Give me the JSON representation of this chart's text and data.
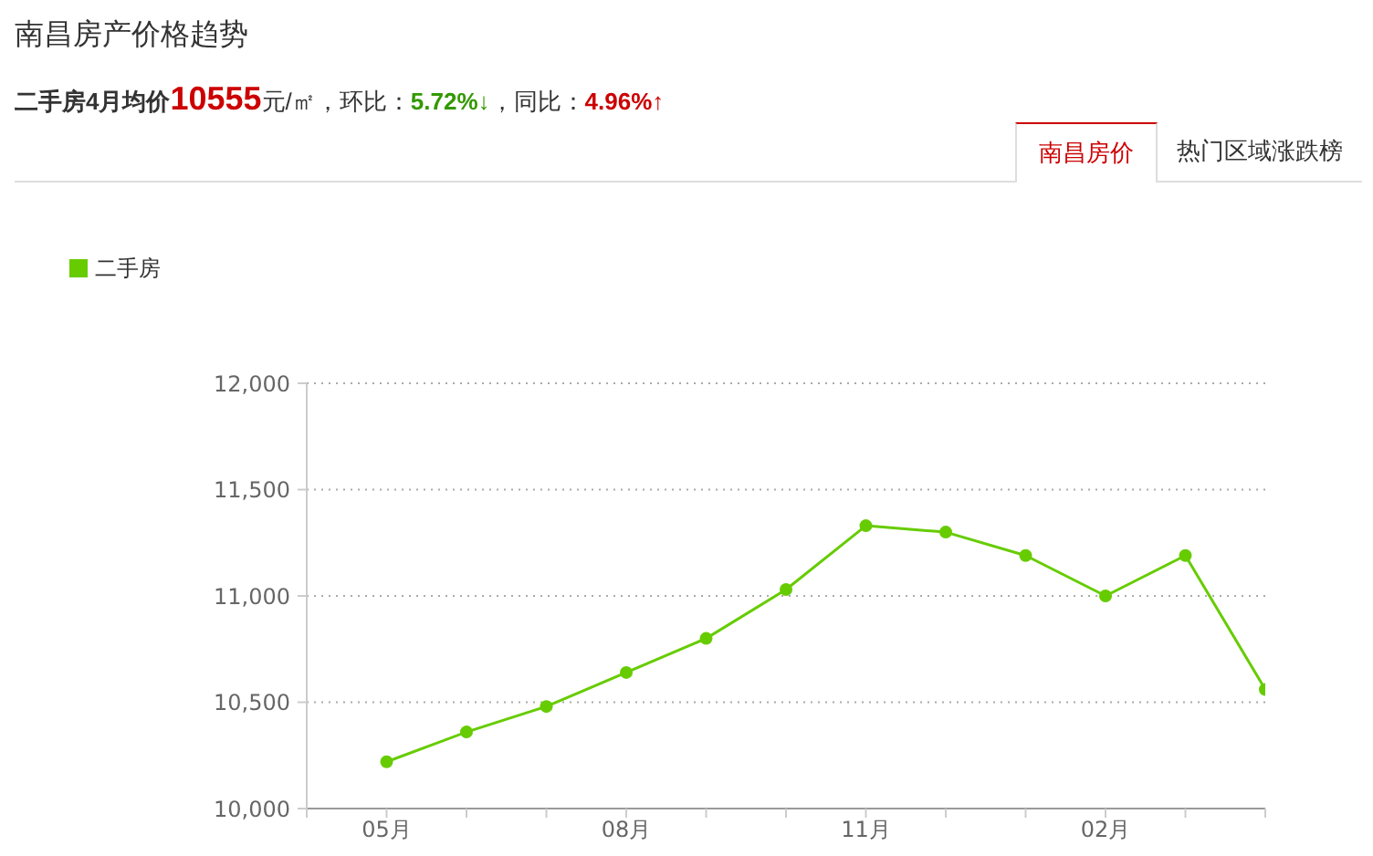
{
  "chart_data": {
    "type": "line",
    "title": "南昌房产价格趋势",
    "subtitle": "二手房4月均价10555元/㎡，环比：5.72%↓，同比：4.96%↑",
    "annotations": [
      "南昌房价",
      "热门区域涨跌榜"
    ],
    "categories": [
      "05月",
      null,
      null,
      "08月",
      null,
      null,
      "11月",
      null,
      null,
      "02月",
      null,
      null
    ],
    "series": [
      {
        "name": "二手房",
        "color": "#66cc00",
        "values": [
          10220,
          10360,
          10480,
          10640,
          10800,
          11030,
          11330,
          11300,
          11190,
          11000,
          11190,
          10560
        ]
      }
    ],
    "ylim": [
      10000,
      12000
    ],
    "yticks": [
      {
        "value": 10000,
        "label": "10,000"
      },
      {
        "value": 10500,
        "label": "10,500"
      },
      {
        "value": 11000,
        "label": "11,000"
      },
      {
        "value": 11500,
        "label": "11,500"
      },
      {
        "value": 12000,
        "label": "12,000"
      }
    ],
    "grid": "y",
    "legend": "top left",
    "marker": "circle",
    "line_style": "solid"
  }
}
